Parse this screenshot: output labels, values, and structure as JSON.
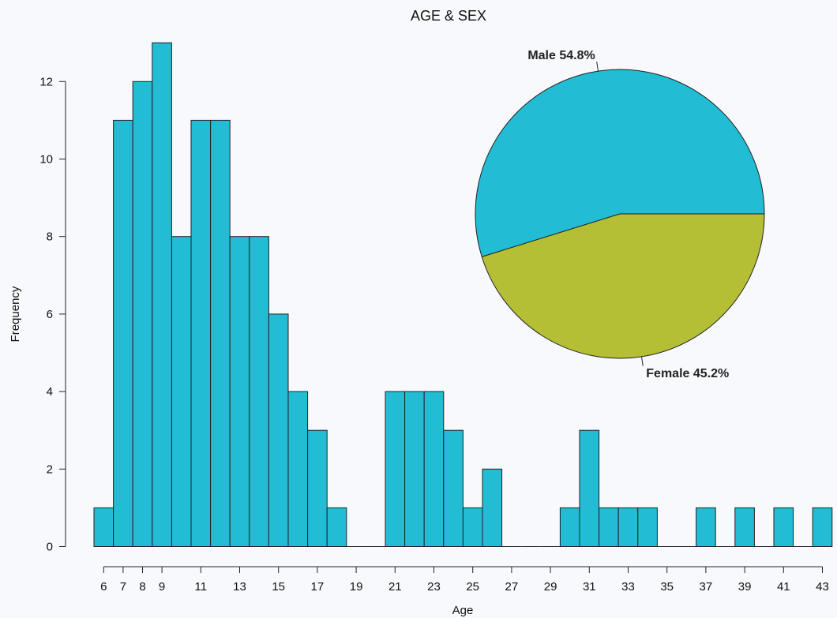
{
  "chart_data": [
    {
      "type": "bar",
      "title": "AGE & SEX",
      "xlabel": "Age",
      "ylabel": "Frequency",
      "bar_color": "#22bcd4",
      "x": [
        6,
        7,
        8,
        9,
        10,
        11,
        12,
        13,
        14,
        15,
        16,
        17,
        18,
        19,
        20,
        21,
        22,
        23,
        24,
        25,
        26,
        27,
        28,
        29,
        30,
        31,
        32,
        33,
        34,
        35,
        36,
        37,
        38,
        39,
        40,
        41,
        42,
        43
      ],
      "values": [
        1,
        11,
        12,
        13,
        8,
        11,
        11,
        8,
        8,
        6,
        4,
        3,
        1,
        0,
        0,
        4,
        4,
        4,
        3,
        1,
        2,
        0,
        0,
        0,
        1,
        3,
        1,
        1,
        1,
        0,
        0,
        1,
        0,
        1,
        0,
        1,
        0,
        1
      ],
      "xticks": [
        6,
        7,
        8,
        9,
        11,
        13,
        15,
        17,
        19,
        21,
        23,
        25,
        27,
        29,
        31,
        33,
        35,
        37,
        39,
        41,
        43
      ],
      "yticks": [
        0,
        2,
        4,
        6,
        8,
        10,
        12
      ],
      "ylim": [
        0,
        13
      ]
    },
    {
      "type": "pie",
      "slices": [
        {
          "label": "Male 54.8%",
          "value": 54.8,
          "color": "#22bcd4"
        },
        {
          "label": "Female 45.2%",
          "value": 45.2,
          "color": "#b5bf35"
        }
      ]
    }
  ]
}
